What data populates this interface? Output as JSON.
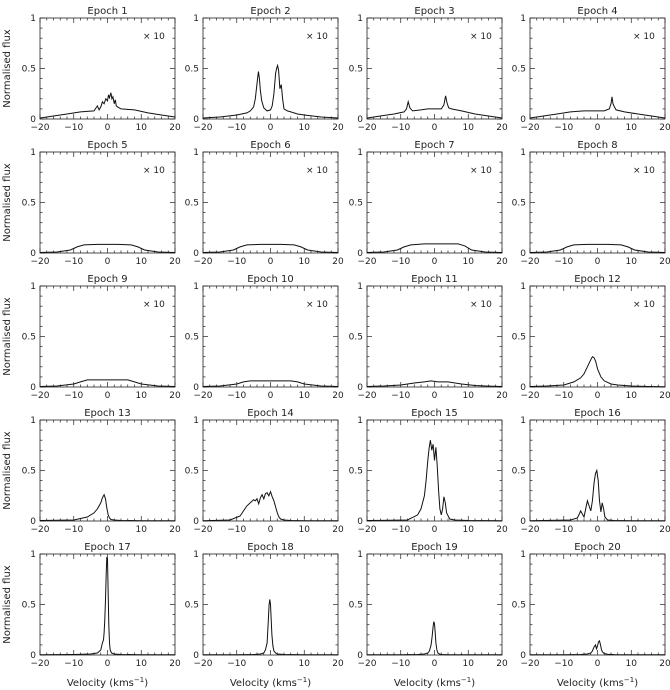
{
  "figure": {
    "ylabel": "Normalised flux",
    "xlabel": "Velocity (kms",
    "xlabel_sup": "−1",
    "xlabel_end": ")"
  },
  "chart_data": {
    "type": "line",
    "grid": false,
    "layout": "5 rows x 4 columns of panels",
    "xlim": [
      -20,
      20
    ],
    "ylim": [
      0,
      1
    ],
    "xticks": [
      -20,
      -10,
      0,
      10,
      20
    ],
    "yticks": [
      0,
      0.5,
      1
    ],
    "xtick_labels": [
      "−20",
      "−10",
      "0",
      "10",
      "20"
    ],
    "ytick_labels": [
      "0",
      "0.5",
      "1"
    ],
    "panels": [
      {
        "title": "Epoch 1",
        "multiplier": "× 10",
        "x": [
          -20,
          -16,
          -12,
          -8,
          -4,
          -3,
          -2.5,
          -2,
          -1.5,
          -1,
          -0.5,
          0,
          0.3,
          0.6,
          1,
          1.3,
          1.6,
          2,
          2.3,
          2.6,
          3,
          3.5,
          4,
          8,
          12,
          16,
          20
        ],
        "y": [
          0.01,
          0.03,
          0.05,
          0.07,
          0.08,
          0.13,
          0.09,
          0.12,
          0.17,
          0.15,
          0.2,
          0.18,
          0.24,
          0.21,
          0.26,
          0.2,
          0.22,
          0.15,
          0.19,
          0.13,
          0.12,
          0.11,
          0.1,
          0.09,
          0.06,
          0.04,
          0.02
        ]
      },
      {
        "title": "Epoch 2",
        "multiplier": "× 10",
        "x": [
          -20,
          -15,
          -10,
          -7,
          -6,
          -5,
          -4.5,
          -4,
          -3.6,
          -3.3,
          -3,
          -2.6,
          -2,
          -1,
          0,
          0.5,
          1,
          1.5,
          1.8,
          2.1,
          2.4,
          2.8,
          3.2,
          3.6,
          4,
          5,
          6,
          8,
          10,
          15,
          20
        ],
        "y": [
          0.01,
          0.02,
          0.04,
          0.06,
          0.08,
          0.12,
          0.2,
          0.35,
          0.47,
          0.4,
          0.28,
          0.18,
          0.11,
          0.08,
          0.09,
          0.13,
          0.25,
          0.45,
          0.5,
          0.53,
          0.48,
          0.3,
          0.34,
          0.2,
          0.1,
          0.08,
          0.07,
          0.05,
          0.04,
          0.02,
          0.01
        ]
      },
      {
        "title": "Epoch 3",
        "multiplier": "× 10",
        "x": [
          -20,
          -16,
          -12,
          -9,
          -8.3,
          -7.8,
          -7.3,
          -6.5,
          -4,
          -2,
          0,
          2,
          2.8,
          3.3,
          3.7,
          4.2,
          5,
          8,
          12,
          16,
          20
        ],
        "y": [
          0.01,
          0.03,
          0.05,
          0.07,
          0.1,
          0.17,
          0.11,
          0.08,
          0.09,
          0.1,
          0.1,
          0.1,
          0.14,
          0.23,
          0.16,
          0.11,
          0.1,
          0.08,
          0.05,
          0.03,
          0.01
        ]
      },
      {
        "title": "Epoch 4",
        "multiplier": "× 10",
        "x": [
          -20,
          -16,
          -12,
          -8,
          -4,
          0,
          2,
          3.5,
          4,
          4.3,
          4.6,
          5,
          5.5,
          8,
          12,
          16,
          20
        ],
        "y": [
          0.01,
          0.03,
          0.05,
          0.07,
          0.08,
          0.08,
          0.08,
          0.1,
          0.15,
          0.22,
          0.15,
          0.12,
          0.09,
          0.07,
          0.05,
          0.03,
          0.01
        ]
      },
      {
        "title": "Epoch 5",
        "multiplier": "× 10",
        "x": [
          -20,
          -15,
          -11,
          -9,
          -7,
          -3,
          0,
          3,
          7,
          9,
          11,
          15,
          20
        ],
        "y": [
          0.005,
          0.01,
          0.03,
          0.06,
          0.08,
          0.085,
          0.085,
          0.085,
          0.08,
          0.06,
          0.03,
          0.01,
          0.005
        ]
      },
      {
        "title": "Epoch 6",
        "multiplier": "× 10",
        "x": [
          -20,
          -15,
          -11,
          -9,
          -7,
          -3,
          0,
          3,
          7,
          9,
          11,
          15,
          20
        ],
        "y": [
          0.005,
          0.01,
          0.03,
          0.06,
          0.08,
          0.085,
          0.085,
          0.085,
          0.08,
          0.06,
          0.03,
          0.01,
          0.005
        ]
      },
      {
        "title": "Epoch 7",
        "multiplier": "× 10",
        "x": [
          -20,
          -15,
          -11,
          -9,
          -7,
          -3,
          0,
          3,
          7,
          9,
          11,
          15,
          20
        ],
        "y": [
          0.005,
          0.01,
          0.03,
          0.06,
          0.08,
          0.09,
          0.09,
          0.09,
          0.09,
          0.07,
          0.03,
          0.01,
          0.005
        ]
      },
      {
        "title": "Epoch 8",
        "multiplier": "× 10",
        "x": [
          -20,
          -15,
          -11,
          -9,
          -7,
          -3,
          0,
          3,
          7,
          9,
          11,
          15,
          20
        ],
        "y": [
          0.005,
          0.01,
          0.03,
          0.06,
          0.08,
          0.085,
          0.085,
          0.085,
          0.08,
          0.06,
          0.03,
          0.01,
          0.005
        ]
      },
      {
        "title": "Epoch 9",
        "multiplier": "× 10",
        "x": [
          -20,
          -15,
          -10,
          -8,
          -6,
          -2,
          2,
          6,
          8,
          10,
          15,
          20
        ],
        "y": [
          0.005,
          0.01,
          0.03,
          0.05,
          0.07,
          0.07,
          0.07,
          0.07,
          0.05,
          0.03,
          0.01,
          0.005
        ]
      },
      {
        "title": "Epoch 10",
        "multiplier": "× 10",
        "x": [
          -20,
          -15,
          -10,
          -8,
          -6,
          -2,
          2,
          6,
          8,
          10,
          15,
          20
        ],
        "y": [
          0.005,
          0.01,
          0.03,
          0.05,
          0.06,
          0.06,
          0.06,
          0.06,
          0.05,
          0.03,
          0.01,
          0.005
        ]
      },
      {
        "title": "Epoch 11",
        "multiplier": "× 10",
        "x": [
          -20,
          -15,
          -10,
          -6,
          -3,
          -1,
          1,
          4,
          8,
          12,
          15,
          20
        ],
        "y": [
          0.005,
          0.01,
          0.02,
          0.04,
          0.05,
          0.06,
          0.05,
          0.05,
          0.03,
          0.015,
          0.01,
          0.005
        ]
      },
      {
        "title": "Epoch 12",
        "multiplier": "× 10",
        "x": [
          -20,
          -15,
          -10,
          -7,
          -5,
          -4,
          -3,
          -2,
          -1.5,
          -1,
          -0.5,
          0,
          1,
          2,
          4,
          6,
          10,
          15,
          20
        ],
        "y": [
          0.005,
          0.01,
          0.02,
          0.05,
          0.09,
          0.13,
          0.2,
          0.27,
          0.3,
          0.29,
          0.25,
          0.18,
          0.1,
          0.06,
          0.03,
          0.02,
          0.01,
          0.005,
          0.003
        ]
      },
      {
        "title": "Epoch 13",
        "multiplier": "",
        "x": [
          -20,
          -10,
          -6,
          -4,
          -3,
          -2,
          -1.5,
          -1,
          -0.6,
          -0.2,
          0.2,
          0.6,
          1,
          2,
          4,
          10,
          20
        ],
        "y": [
          0.005,
          0.01,
          0.04,
          0.08,
          0.12,
          0.18,
          0.23,
          0.26,
          0.22,
          0.13,
          0.06,
          0.03,
          0.015,
          0.01,
          0.005,
          0.003,
          0.002
        ]
      },
      {
        "title": "Epoch 14",
        "multiplier": "",
        "x": [
          -20,
          -12,
          -9,
          -8,
          -7,
          -6,
          -5,
          -4.5,
          -4,
          -3.5,
          -3,
          -2.5,
          -2,
          -1.5,
          -1,
          -0.5,
          0,
          0.5,
          1,
          1.5,
          2,
          2.5,
          3,
          4,
          6,
          10,
          20
        ],
        "y": [
          0.003,
          0.01,
          0.05,
          0.1,
          0.15,
          0.18,
          0.21,
          0.2,
          0.22,
          0.17,
          0.23,
          0.26,
          0.22,
          0.27,
          0.28,
          0.25,
          0.29,
          0.24,
          0.2,
          0.14,
          0.08,
          0.04,
          0.02,
          0.01,
          0.005,
          0.003,
          0.002
        ]
      },
      {
        "title": "Epoch 15",
        "multiplier": "",
        "x": [
          -20,
          -8,
          -5,
          -4,
          -3,
          -2.5,
          -2,
          -1.6,
          -1.2,
          -0.8,
          -0.4,
          0,
          0.4,
          0.8,
          1.2,
          1.6,
          2,
          2.4,
          2.8,
          3.2,
          3.6,
          4.5,
          6,
          10,
          20
        ],
        "y": [
          0.005,
          0.01,
          0.06,
          0.12,
          0.25,
          0.4,
          0.6,
          0.72,
          0.8,
          0.7,
          0.76,
          0.6,
          0.73,
          0.55,
          0.3,
          0.12,
          0.06,
          0.12,
          0.24,
          0.18,
          0.08,
          0.02,
          0.01,
          0.005,
          0.002
        ]
      },
      {
        "title": "Epoch 16",
        "multiplier": "",
        "x": [
          -20,
          -8,
          -6,
          -5.5,
          -5,
          -4.5,
          -4,
          -3.5,
          -3,
          -2.5,
          -2,
          -1.5,
          -1,
          -0.6,
          -0.2,
          0.2,
          0.6,
          1,
          1.4,
          1.8,
          2.2,
          3,
          5,
          10,
          20
        ],
        "y": [
          0.003,
          0.01,
          0.03,
          0.06,
          0.1,
          0.07,
          0.04,
          0.12,
          0.2,
          0.15,
          0.1,
          0.2,
          0.38,
          0.47,
          0.5,
          0.4,
          0.2,
          0.09,
          0.18,
          0.12,
          0.04,
          0.01,
          0.005,
          0.003,
          0.002
        ]
      },
      {
        "title": "Epoch 17",
        "multiplier": "",
        "x": [
          -20,
          -10,
          -5,
          -3,
          -2,
          -1.5,
          -1.2,
          -1,
          -0.8,
          -0.6,
          -0.4,
          -0.2,
          0,
          0.2,
          0.4,
          0.6,
          0.8,
          1.2,
          2,
          4,
          10,
          20
        ],
        "y": [
          0.002,
          0.005,
          0.01,
          0.02,
          0.05,
          0.12,
          0.15,
          0.22,
          0.35,
          0.55,
          0.8,
          0.97,
          0.95,
          0.6,
          0.3,
          0.12,
          0.05,
          0.02,
          0.01,
          0.005,
          0.003,
          0.002
        ]
      },
      {
        "title": "Epoch 18",
        "multiplier": "",
        "x": [
          -20,
          -10,
          -5,
          -3,
          -2,
          -1.5,
          -1,
          -0.7,
          -0.4,
          -0.2,
          0,
          0.2,
          0.4,
          0.7,
          1,
          1.5,
          2,
          4,
          10,
          20
        ],
        "y": [
          0.002,
          0.003,
          0.005,
          0.01,
          0.02,
          0.05,
          0.12,
          0.3,
          0.5,
          0.55,
          0.5,
          0.35,
          0.2,
          0.09,
          0.04,
          0.02,
          0.01,
          0.005,
          0.003,
          0.002
        ]
      },
      {
        "title": "Epoch 19",
        "multiplier": "",
        "x": [
          -20,
          -10,
          -5,
          -3,
          -2,
          -1.5,
          -1,
          -0.7,
          -0.4,
          -0.2,
          0,
          0.2,
          0.4,
          0.7,
          1,
          1.5,
          2,
          4,
          10,
          20
        ],
        "y": [
          0.002,
          0.003,
          0.005,
          0.01,
          0.02,
          0.04,
          0.1,
          0.18,
          0.28,
          0.33,
          0.31,
          0.22,
          0.12,
          0.05,
          0.02,
          0.01,
          0.005,
          0.003,
          0.002,
          0.002
        ]
      },
      {
        "title": "Epoch 20",
        "multiplier": "",
        "x": [
          -20,
          -10,
          -5,
          -3,
          -2,
          -1.5,
          -1,
          -0.6,
          -0.3,
          0,
          0.3,
          0.6,
          0.9,
          1.2,
          1.5,
          2,
          3,
          5,
          10,
          20
        ],
        "y": [
          0.002,
          0.003,
          0.005,
          0.01,
          0.02,
          0.04,
          0.08,
          0.1,
          0.06,
          0.09,
          0.13,
          0.14,
          0.1,
          0.05,
          0.03,
          0.015,
          0.008,
          0.004,
          0.003,
          0.002
        ]
      }
    ]
  }
}
